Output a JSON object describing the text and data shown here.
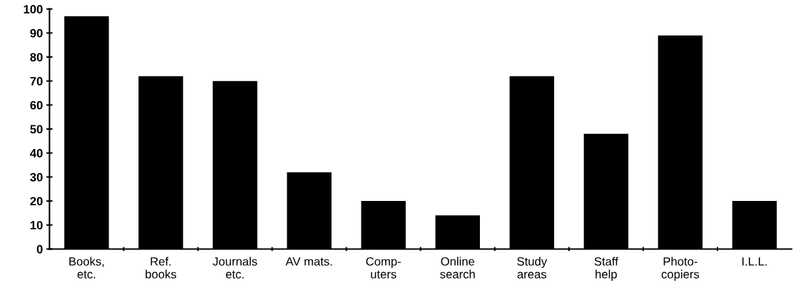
{
  "chart_data": {
    "type": "bar",
    "categories": [
      "Books,\netc.",
      "Ref.\nbooks",
      "Journals\netc.",
      "AV mats.",
      "Comp-\nuters",
      "Online\nsearch",
      "Study\nareas",
      "Staff\nhelp",
      "Photo-\ncopiers",
      "I.L.L."
    ],
    "values": [
      97,
      72,
      70,
      32,
      20,
      14,
      72,
      48,
      89,
      20
    ],
    "color": "#000000",
    "ylim": [
      0,
      100
    ],
    "yticks": [
      0,
      10,
      20,
      30,
      40,
      50,
      60,
      70,
      80,
      90,
      100
    ],
    "grid": false
  }
}
